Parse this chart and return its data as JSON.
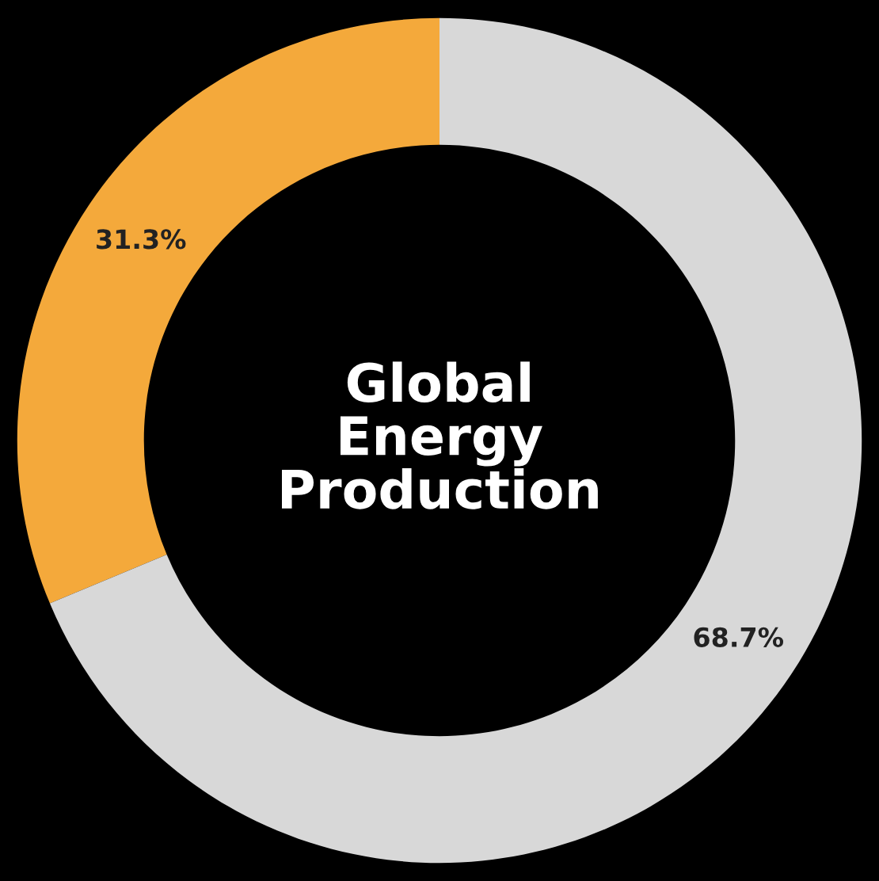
{
  "chart_data": {
    "type": "donut",
    "title": "Global\nEnergy\nProduction",
    "categories": [
      null,
      null
    ],
    "values": [
      31.3,
      68.7
    ],
    "colors": [
      "#f4a93b",
      "#d8d8d8"
    ],
    "value_labels": [
      "31.3%",
      "68.7%"
    ]
  }
}
